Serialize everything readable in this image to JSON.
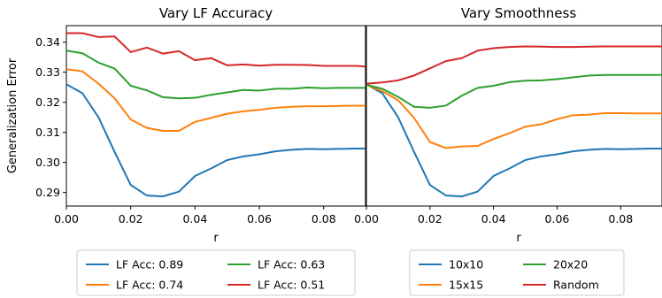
{
  "chart_data": [
    {
      "type": "line",
      "title": "Vary LF Accuracy",
      "xlabel": "r",
      "ylabel": "Generalization Error",
      "xlim": [
        0.0,
        0.093
      ],
      "ylim": [
        0.2855,
        0.3455
      ],
      "xticks": [
        "0.00",
        "0.02",
        "0.04",
        "0.06",
        "0.08"
      ],
      "yticks": [
        "0.29",
        "0.30",
        "0.31",
        "0.32",
        "0.33",
        "0.34"
      ],
      "x": [
        0.0,
        0.005,
        0.01,
        0.015,
        0.02,
        0.025,
        0.03,
        0.035,
        0.04,
        0.045,
        0.05,
        0.055,
        0.06,
        0.065,
        0.07,
        0.075,
        0.08,
        0.085,
        0.09,
        0.093
      ],
      "series": [
        {
          "name": "LF Acc: 0.89",
          "color": "#1f77b4",
          "values": [
            0.326,
            0.323,
            0.315,
            0.3035,
            0.2925,
            0.289,
            0.2887,
            0.2903,
            0.2955,
            0.298,
            0.3008,
            0.302,
            0.3027,
            0.3037,
            0.3042,
            0.3045,
            0.3044,
            0.3045,
            0.3046,
            0.3046
          ]
        },
        {
          "name": "LF Acc: 0.74",
          "color": "#ff7f0e",
          "values": [
            0.331,
            0.3303,
            0.3262,
            0.3213,
            0.3143,
            0.3115,
            0.3105,
            0.3105,
            0.3135,
            0.3148,
            0.3162,
            0.317,
            0.3175,
            0.3182,
            0.3185,
            0.3187,
            0.3187,
            0.3188,
            0.3189,
            0.3189
          ]
        },
        {
          "name": "LF Acc: 0.63",
          "color": "#2ca02c",
          "values": [
            0.3372,
            0.3363,
            0.3332,
            0.3312,
            0.3255,
            0.324,
            0.3217,
            0.3213,
            0.3215,
            0.3225,
            0.3233,
            0.3241,
            0.3239,
            0.3245,
            0.3245,
            0.3249,
            0.3247,
            0.3248,
            0.3248,
            0.3248
          ]
        },
        {
          "name": "LF Acc: 0.51",
          "color": "#d62728",
          "values": [
            0.343,
            0.343,
            0.3417,
            0.3419,
            0.3367,
            0.3382,
            0.3362,
            0.337,
            0.334,
            0.3347,
            0.3323,
            0.3326,
            0.3322,
            0.3325,
            0.3325,
            0.3324,
            0.3321,
            0.3321,
            0.3321,
            0.3319
          ]
        }
      ],
      "legend": "below"
    },
    {
      "type": "line",
      "title": "Vary Smoothness",
      "xlabel": "r",
      "ylabel": "",
      "xlim": [
        0.0,
        0.093
      ],
      "ylim": [
        0.2855,
        0.3455
      ],
      "xticks": [
        "0.00",
        "0.02",
        "0.04",
        "0.06",
        "0.08"
      ],
      "x": [
        0.0,
        0.005,
        0.01,
        0.015,
        0.02,
        0.025,
        0.03,
        0.035,
        0.04,
        0.045,
        0.05,
        0.055,
        0.06,
        0.065,
        0.07,
        0.075,
        0.08,
        0.085,
        0.09,
        0.093
      ],
      "series": [
        {
          "name": "10x10",
          "color": "#1f77b4",
          "values": [
            0.326,
            0.323,
            0.315,
            0.3035,
            0.2925,
            0.289,
            0.2887,
            0.2903,
            0.2955,
            0.298,
            0.3008,
            0.302,
            0.3027,
            0.3037,
            0.3042,
            0.3045,
            0.3044,
            0.3045,
            0.3046,
            0.3046
          ]
        },
        {
          "name": "15x15",
          "color": "#ff7f0e",
          "values": [
            0.3258,
            0.3237,
            0.3207,
            0.3148,
            0.3068,
            0.3048,
            0.3053,
            0.3055,
            0.3078,
            0.3097,
            0.3119,
            0.3127,
            0.3144,
            0.3157,
            0.3159,
            0.3164,
            0.3164,
            0.3163,
            0.3163,
            0.3163
          ]
        },
        {
          "name": "20x20",
          "color": "#2ca02c",
          "values": [
            0.3258,
            0.3245,
            0.3218,
            0.3185,
            0.3182,
            0.3189,
            0.3222,
            0.3248,
            0.3255,
            0.3267,
            0.3272,
            0.3273,
            0.3277,
            0.3283,
            0.3289,
            0.3291,
            0.3291,
            0.3291,
            0.3291,
            0.3291
          ]
        },
        {
          "name": "Random",
          "color": "#d62728",
          "values": [
            0.3262,
            0.3266,
            0.3273,
            0.3289,
            0.3313,
            0.3337,
            0.3347,
            0.3372,
            0.338,
            0.3384,
            0.3386,
            0.3385,
            0.3384,
            0.3384,
            0.3385,
            0.3386,
            0.3386,
            0.3386,
            0.3386,
            0.3386
          ]
        }
      ],
      "legend": "below"
    }
  ]
}
